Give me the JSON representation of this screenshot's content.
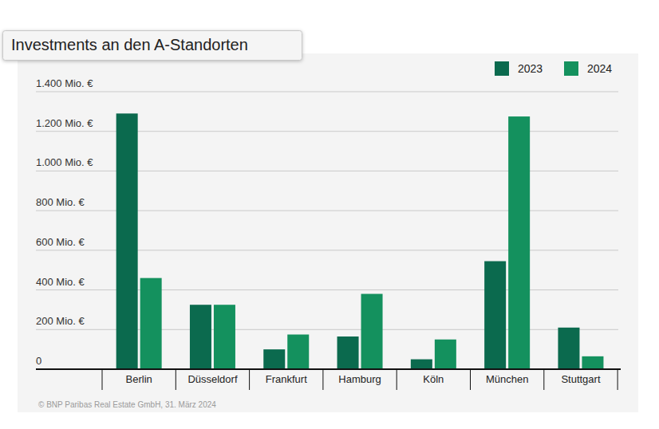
{
  "chart_data": {
    "type": "bar",
    "title": "Investments an den A-Standorten",
    "source": "© BNP Paribas Real Estate GmbH, 31. März 2024",
    "categories": [
      "Berlin",
      "Düsseldorf",
      "Frankfurt",
      "Hamburg",
      "Köln",
      "München",
      "Stuttgart"
    ],
    "series": [
      {
        "name": "2023",
        "color": "#0b6a4e",
        "values": [
          1290,
          325,
          100,
          165,
          50,
          545,
          210
        ]
      },
      {
        "name": "2024",
        "color": "#14915e",
        "values": [
          460,
          325,
          175,
          380,
          150,
          1275,
          65
        ]
      }
    ],
    "ylim": [
      0,
      1400
    ],
    "yticks": [
      0,
      {
        "value": 200,
        "label": "200 Mio. €"
      },
      {
        "value": 400,
        "label": "400 Mio. €"
      },
      {
        "value": 600,
        "label": "600 Mio. €"
      },
      {
        "value": 800,
        "label": "800 Mio. €"
      },
      {
        "value": 1000,
        "label": "1.000 Mio. €"
      },
      {
        "value": 1200,
        "label": "1.200 Mio. €"
      },
      {
        "value": 1400,
        "label": "1.400 Mio. €"
      }
    ],
    "grid": true,
    "legend": "top-right"
  }
}
